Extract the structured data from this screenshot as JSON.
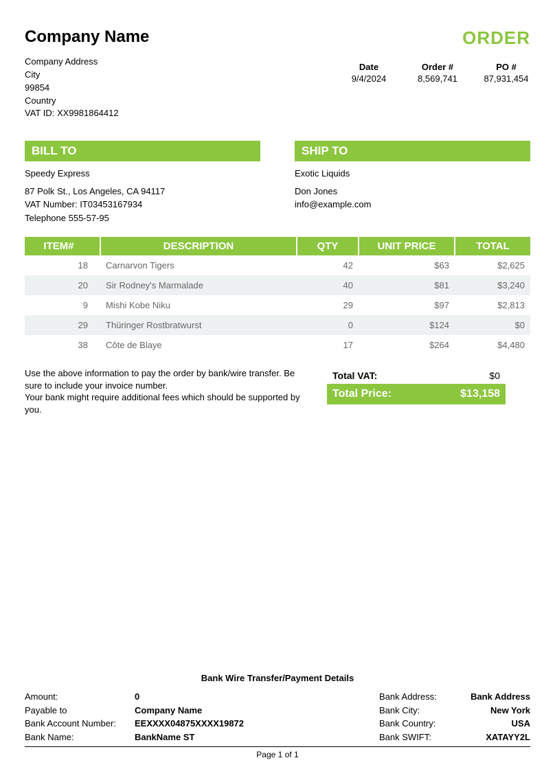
{
  "colors": {
    "accent": "#8cc63f",
    "row_alt": "#eef1f2",
    "text_muted": "#666666",
    "background": "#ffffff"
  },
  "header": {
    "company_name": "Company Name",
    "order_title": "ORDER",
    "address": "Company Address",
    "city": "City",
    "postal": "99854",
    "country": "Country",
    "vat_id": "VAT ID: XX9981864412"
  },
  "meta": {
    "date_label": "Date",
    "date_value": "9/4/2024",
    "order_label": "Order #",
    "order_value": "8,569,741",
    "po_label": "PO #",
    "po_value": "87,931,454"
  },
  "bill_to": {
    "header": "BILL TO",
    "name": "Speedy Express",
    "line1": "87 Polk St., Los Angeles, CA 94117",
    "line2": "VAT Number: IT03453167934",
    "line3": "Telephone 555-57-95"
  },
  "ship_to": {
    "header": "SHIP TO",
    "name": "Exotic Liquids",
    "line1": "Don Jones",
    "line2": "info@example.com"
  },
  "items_table": {
    "headers": {
      "item": "ITEM#",
      "desc": "DESCRIPTION",
      "qty": "QTY",
      "unit": "UNIT PRICE",
      "total": "TOTAL"
    },
    "rows": [
      {
        "item": "18",
        "desc": "Carnarvon Tigers",
        "qty": "42",
        "unit": "$63",
        "total": "$2,625"
      },
      {
        "item": "20",
        "desc": "Sir Rodney's Marmalade",
        "qty": "40",
        "unit": "$81",
        "total": "$3,240"
      },
      {
        "item": "9",
        "desc": "Mishi Kobe Niku",
        "qty": "29",
        "unit": "$97",
        "total": "$2,813"
      },
      {
        "item": "29",
        "desc": "Thüringer Rostbratwurst",
        "qty": "0",
        "unit": "$124",
        "total": "$0"
      },
      {
        "item": "38",
        "desc": "Côte de Blaye",
        "qty": "17",
        "unit": "$264",
        "total": "$4,480"
      }
    ]
  },
  "note": {
    "line1": "Use the above information to pay the order by bank/wire transfer. Be sure to include your invoice number.",
    "line2": "Your bank might require additional fees which should be supported by you."
  },
  "totals": {
    "vat_label": "Total VAT:",
    "vat_value": "$0",
    "grand_label": "Total Price:",
    "grand_value": "$13,158"
  },
  "bank": {
    "title": "Bank Wire Transfer/Payment Details",
    "left": [
      {
        "label": "Amount:",
        "value": "0"
      },
      {
        "label": "Payable to",
        "value": "Company Name"
      },
      {
        "label": "Bank Account Number:",
        "value": "EEXXXX04875XXXX19872"
      },
      {
        "label": "Bank Name:",
        "value": "BankName ST"
      }
    ],
    "right": [
      {
        "label": "Bank Address:",
        "value": "Bank Address"
      },
      {
        "label": "Bank City:",
        "value": "New York"
      },
      {
        "label": "Bank Country:",
        "value": "USA"
      },
      {
        "label": "Bank SWIFT:",
        "value": "XATAYY2L"
      }
    ]
  },
  "page_num": "Page 1 of 1"
}
